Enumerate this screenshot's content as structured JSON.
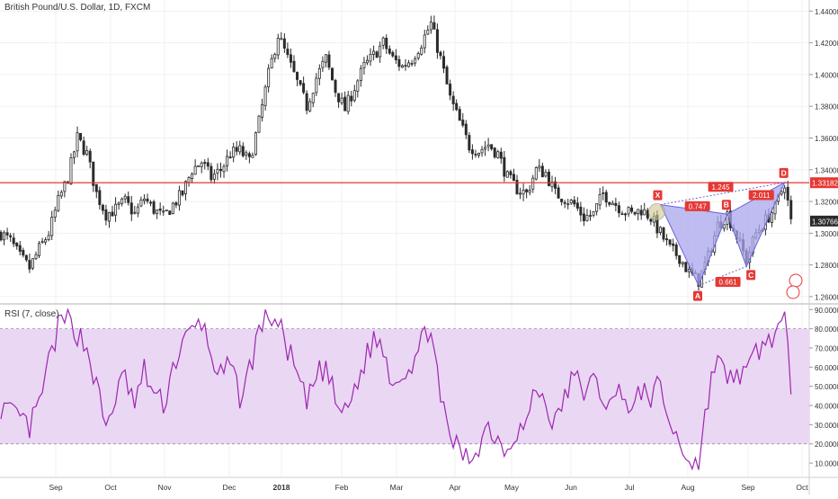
{
  "main_legend": "British Pound/U.S. Dollar, 1D, FXCM",
  "rsi_legend": "RSI (7, close)",
  "colors": {
    "up": "#ffffff",
    "down": "#2b2b2b",
    "wick": "#2b2b2b",
    "resistance": "#e53935",
    "pattern_fill": "#a9a6ec",
    "pattern_line": "#6b62d6",
    "label_bg": "#e53935",
    "rsi_line": "#9c27b0",
    "rsi_band": "#ead7f3",
    "last_price_bg": "#2b2b2b",
    "grid": "#f1f1f1"
  },
  "chart_data": [
    {
      "type": "candlestick",
      "title": "British Pound/U.S. Dollar, 1D, FXCM",
      "x": [
        "Sep",
        "Oct",
        "Nov",
        "Dec",
        "2018",
        "Feb",
        "Mar",
        "Apr",
        "May",
        "Jun",
        "Jul",
        "Aug",
        "Sep",
        "Oct"
      ],
      "y_ticks": [
        "1.26000",
        "1.28000",
        "1.30000",
        "1.32000",
        "1.34000",
        "1.36000",
        "1.38000",
        "1.40000",
        "1.42000",
        "1.44000"
      ],
      "ylim": [
        1.256,
        1.447
      ],
      "price_path": [
        [
          0,
          1.3
        ],
        [
          3,
          1.295
        ],
        [
          6,
          1.285
        ],
        [
          9,
          1.278
        ],
        [
          12,
          1.29
        ],
        [
          15,
          1.3
        ],
        [
          18,
          1.32
        ],
        [
          21,
          1.335
        ],
        [
          24,
          1.36
        ],
        [
          27,
          1.35
        ],
        [
          30,
          1.325
        ],
        [
          33,
          1.312
        ],
        [
          36,
          1.315
        ],
        [
          39,
          1.32
        ],
        [
          42,
          1.312
        ],
        [
          45,
          1.322
        ],
        [
          48,
          1.315
        ],
        [
          51,
          1.31
        ],
        [
          54,
          1.318
        ],
        [
          57,
          1.325
        ],
        [
          60,
          1.34
        ],
        [
          63,
          1.345
        ],
        [
          66,
          1.335
        ],
        [
          69,
          1.34
        ],
        [
          72,
          1.35
        ],
        [
          75,
          1.352
        ],
        [
          78,
          1.345
        ],
        [
          81,
          1.37
        ],
        [
          84,
          1.4
        ],
        [
          87,
          1.425
        ],
        [
          90,
          1.41
        ],
        [
          93,
          1.395
        ],
        [
          96,
          1.38
        ],
        [
          99,
          1.398
        ],
        [
          102,
          1.41
        ],
        [
          105,
          1.39
        ],
        [
          108,
          1.378
        ],
        [
          111,
          1.392
        ],
        [
          114,
          1.405
        ],
        [
          117,
          1.412
        ],
        [
          120,
          1.42
        ],
        [
          123,
          1.41
        ],
        [
          126,
          1.405
        ],
        [
          129,
          1.41
        ],
        [
          132,
          1.42
        ],
        [
          135,
          1.432
        ],
        [
          138,
          1.41
        ],
        [
          141,
          1.385
        ],
        [
          144,
          1.37
        ],
        [
          147,
          1.355
        ],
        [
          150,
          1.352
        ],
        [
          153,
          1.356
        ],
        [
          156,
          1.35
        ],
        [
          159,
          1.335
        ],
        [
          162,
          1.328
        ],
        [
          165,
          1.325
        ],
        [
          168,
          1.34
        ],
        [
          171,
          1.338
        ],
        [
          174,
          1.325
        ],
        [
          177,
          1.322
        ],
        [
          180,
          1.318
        ],
        [
          183,
          1.31
        ],
        [
          186,
          1.312
        ],
        [
          189,
          1.325
        ],
        [
          192,
          1.32
        ],
        [
          195,
          1.315
        ],
        [
          198,
          1.312
        ],
        [
          201,
          1.315
        ],
        [
          204,
          1.31
        ],
        [
          207,
          1.3
        ],
        [
          210,
          1.29
        ],
        [
          213,
          1.285
        ],
        [
          216,
          1.275
        ],
        [
          219,
          1.27
        ],
        [
          222,
          1.285
        ],
        [
          225,
          1.305
        ],
        [
          228,
          1.312
        ],
        [
          231,
          1.298
        ],
        [
          234,
          1.283
        ],
        [
          237,
          1.3
        ],
        [
          240,
          1.308
        ],
        [
          243,
          1.316
        ],
        [
          246,
          1.332
        ],
        [
          248,
          1.307
        ]
      ],
      "resistance_level": 1.33182,
      "last_price": "1.30766",
      "price_tags": [
        "1.33182",
        "1.30766"
      ],
      "harmonic_pattern": {
        "points": [
          {
            "label": "X",
            "t": 207,
            "price": 1.318
          },
          {
            "label": "A",
            "t": 219,
            "price": 1.267
          },
          {
            "label": "B",
            "t": 228,
            "price": 1.312
          },
          {
            "label": "C",
            "t": 234,
            "price": 1.279
          },
          {
            "label": "D",
            "t": 246,
            "price": 1.332
          }
        ],
        "ratios": [
          "1.245",
          "0.747",
          "0.661",
          "2.011"
        ]
      }
    },
    {
      "type": "line",
      "title": "RSI (7, close)",
      "ylim": [
        3,
        92
      ],
      "y_ticks": [
        "10.0000",
        "20.0000",
        "30.0000",
        "40.0000",
        "50.0000",
        "60.0000",
        "70.0000",
        "80.0000",
        "90.0000"
      ],
      "band": [
        20,
        80
      ],
      "series": [
        {
          "name": "RSI (7, close)",
          "values": [
            [
              0,
              40
            ],
            [
              3,
              35
            ],
            [
              6,
              33
            ],
            [
              9,
              28
            ],
            [
              12,
              40
            ],
            [
              15,
              62
            ],
            [
              18,
              80
            ],
            [
              21,
              86
            ],
            [
              24,
              78
            ],
            [
              27,
              70
            ],
            [
              30,
              50
            ],
            [
              33,
              28
            ],
            [
              36,
              45
            ],
            [
              39,
              55
            ],
            [
              42,
              40
            ],
            [
              45,
              58
            ],
            [
              48,
              46
            ],
            [
              51,
              40
            ],
            [
              54,
              60
            ],
            [
              57,
              72
            ],
            [
              60,
              78
            ],
            [
              63,
              84
            ],
            [
              66,
              66
            ],
            [
              69,
              55
            ],
            [
              72,
              60
            ],
            [
              75,
              45
            ],
            [
              78,
              58
            ],
            [
              81,
              80
            ],
            [
              84,
              88
            ],
            [
              87,
              82
            ],
            [
              90,
              70
            ],
            [
              93,
              55
            ],
            [
              96,
              40
            ],
            [
              99,
              55
            ],
            [
              102,
              60
            ],
            [
              105,
              42
            ],
            [
              108,
              35
            ],
            [
              111,
              48
            ],
            [
              114,
              62
            ],
            [
              117,
              75
            ],
            [
              120,
              70
            ],
            [
              123,
              52
            ],
            [
              126,
              58
            ],
            [
              129,
              62
            ],
            [
              132,
              72
            ],
            [
              135,
              84
            ],
            [
              138,
              40
            ],
            [
              141,
              25
            ],
            [
              144,
              15
            ],
            [
              147,
              12
            ],
            [
              150,
              20
            ],
            [
              153,
              30
            ],
            [
              156,
              22
            ],
            [
              159,
              18
            ],
            [
              162,
              28
            ],
            [
              165,
              30
            ],
            [
              168,
              50
            ],
            [
              171,
              40
            ],
            [
              174,
              30
            ],
            [
              177,
              45
            ],
            [
              180,
              55
            ],
            [
              183,
              48
            ],
            [
              186,
              52
            ],
            [
              189,
              45
            ],
            [
              192,
              40
            ],
            [
              195,
              50
            ],
            [
              198,
              35
            ],
            [
              201,
              48
            ],
            [
              204,
              45
            ],
            [
              207,
              50
            ],
            [
              210,
              30
            ],
            [
              213,
              20
            ],
            [
              216,
              12
            ],
            [
              219,
              10
            ],
            [
              222,
              45
            ],
            [
              225,
              68
            ],
            [
              228,
              50
            ],
            [
              231,
              58
            ],
            [
              234,
              55
            ],
            [
              237,
              68
            ],
            [
              240,
              72
            ],
            [
              243,
              78
            ],
            [
              246,
              82
            ],
            [
              248,
              50
            ]
          ]
        }
      ]
    }
  ]
}
